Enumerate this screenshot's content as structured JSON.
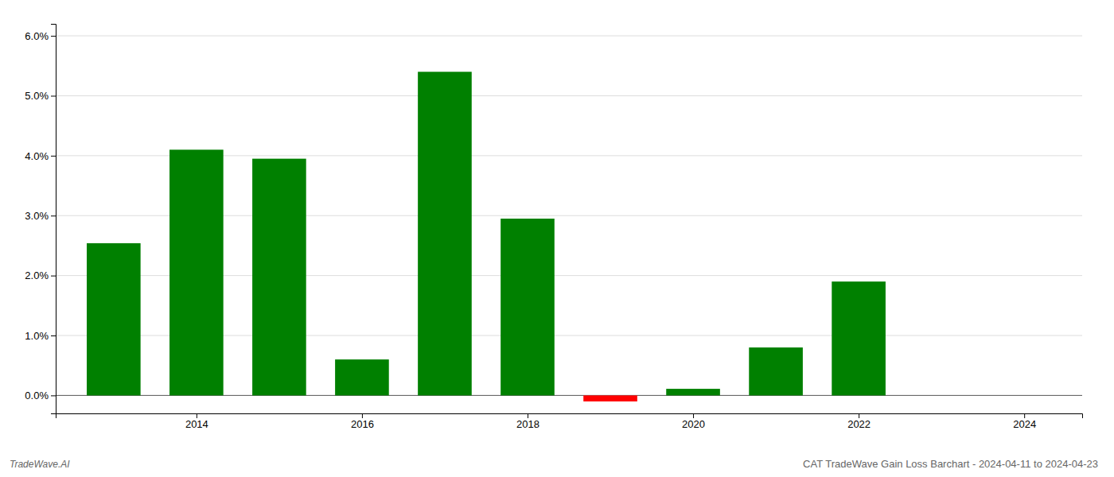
{
  "chart_data": {
    "type": "bar",
    "title": "CAT TradeWave Gain Loss Barchart - 2024-04-11 to 2024-04-23",
    "annotations": [
      "TradeWave.AI"
    ],
    "x": [
      2013,
      2014,
      2015,
      2016,
      2017,
      2018,
      2019,
      2020,
      2021,
      2022,
      2023
    ],
    "values": [
      0.0254,
      0.041,
      0.0395,
      0.006,
      0.054,
      0.0295,
      -0.001,
      0.0011,
      0.008,
      0.019,
      0.0
    ],
    "colors": [
      "#008000",
      "#008000",
      "#008000",
      "#008000",
      "#008000",
      "#008000",
      "#ff0000",
      "#008000",
      "#008000",
      "#008000",
      "#008000"
    ],
    "xlim": [
      2012.3,
      2024.7
    ],
    "xticks": [
      2014,
      2016,
      2018,
      2020,
      2022,
      2024
    ],
    "ylim": [
      -0.003,
      0.062
    ],
    "yticks": [
      {
        "value": 0,
        "label": "0.0%"
      },
      {
        "value": 0.01,
        "label": "1.0%"
      },
      {
        "value": 0.02,
        "label": "2.0%"
      },
      {
        "value": 0.03,
        "label": "3.0%"
      },
      {
        "value": 0.04,
        "label": "4.0%"
      },
      {
        "value": 0.05,
        "label": "5.0%"
      },
      {
        "value": 0.06,
        "label": "6.0%"
      }
    ],
    "grid": true
  }
}
